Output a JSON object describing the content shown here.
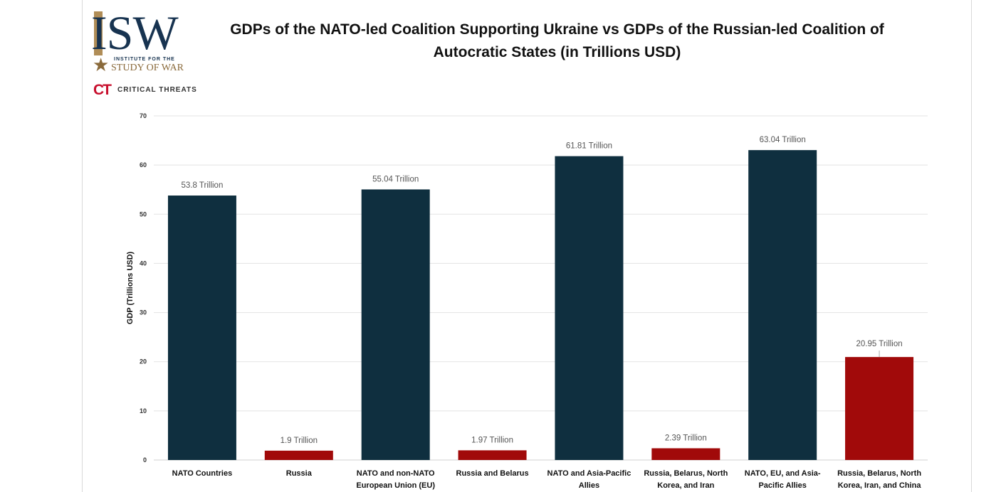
{
  "logos": {
    "isw_letters": "ISW",
    "isw_small": "INSTITUTE FOR THE",
    "isw_study": "STUDY OF WAR",
    "ct_mark": "CT",
    "ct_text": "CRITICAL THREATS"
  },
  "chart_data": {
    "type": "bar",
    "title": "GDPs of the NATO-led Coalition Supporting Ukraine vs GDPs of the Russian-led Coalition of Autocratic States (in Trillions USD)",
    "xlabel": "",
    "ylabel": "GDP (Trillions USD)",
    "ylim": [
      0,
      70
    ],
    "yticks": [
      0,
      10,
      20,
      30,
      40,
      50,
      60,
      70
    ],
    "grid": true,
    "colors": {
      "nato": "#0f2f3f",
      "russia": "#a10a0a"
    },
    "categories": [
      [
        "NATO Countries"
      ],
      [
        "Russia"
      ],
      [
        "NATO and non-NATO",
        "European Union (EU)"
      ],
      [
        "Russia and Belarus"
      ],
      [
        "NATO and Asia-Pacific",
        "Allies"
      ],
      [
        "Russia, Belarus, North",
        "Korea, and Iran"
      ],
      [
        "NATO, EU, and Asia-",
        "Pacific Allies"
      ],
      [
        "Russia, Belarus, North",
        "Korea, Iran, and China"
      ]
    ],
    "values": [
      53.8,
      1.9,
      55.04,
      1.97,
      61.81,
      2.39,
      63.04,
      20.95
    ],
    "groups": [
      "nato",
      "russia",
      "nato",
      "russia",
      "nato",
      "russia",
      "nato",
      "russia"
    ],
    "data_labels": [
      "53.8 Trillion",
      "1.9 Trillion",
      "55.04 Trillion",
      "1.97 Trillion",
      "61.81 Trillion",
      "2.39 Trillion",
      "63.04 Trillion",
      "20.95 Trillion"
    ]
  }
}
